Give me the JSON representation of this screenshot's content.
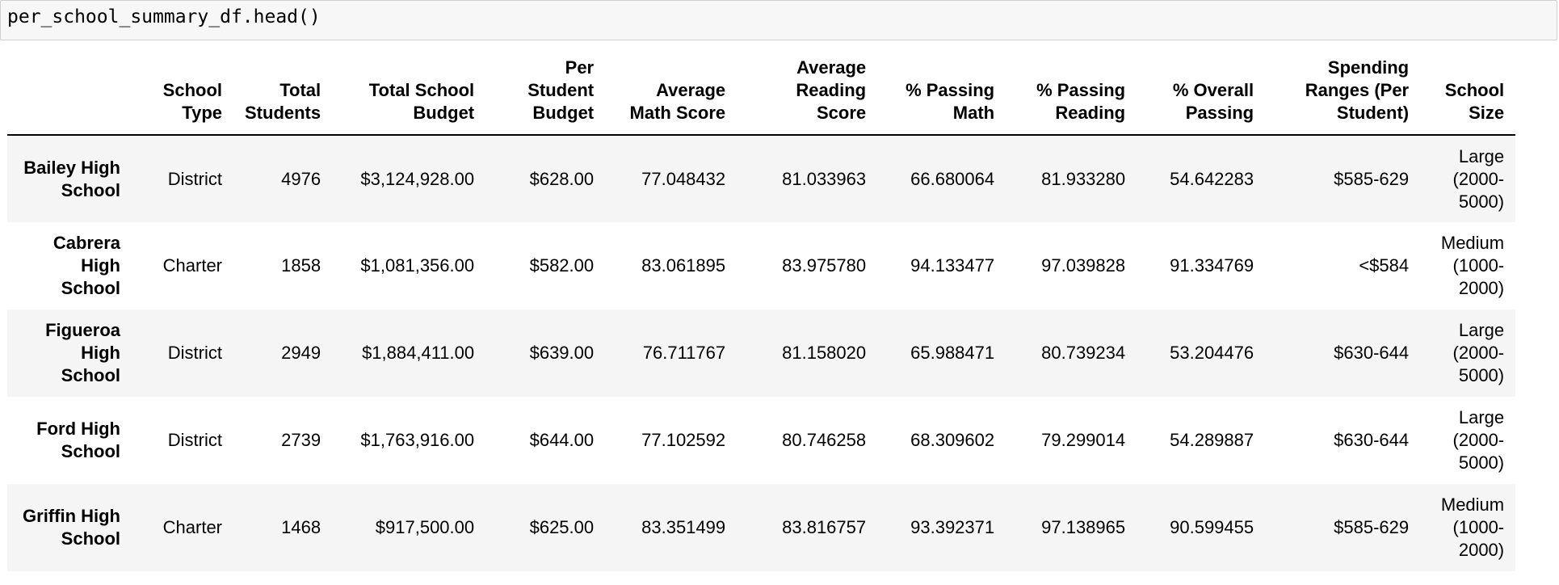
{
  "input": {
    "code": "per_school_summary_df.head()"
  },
  "table": {
    "columns": [
      "",
      "School Type",
      "Total Students",
      "Total School Budget",
      "Per Student Budget",
      "Average Math Score",
      "Average Reading Score",
      "% Passing Math",
      "% Passing Reading",
      "% Overall Passing",
      "Spending Ranges (Per Student)",
      "School Size"
    ],
    "rows": [
      {
        "index": "Bailey High School",
        "cells": [
          "District",
          "4976",
          "$3,124,928.00",
          "$628.00",
          "77.048432",
          "81.033963",
          "66.680064",
          "81.933280",
          "54.642283",
          "$585-629",
          "Large (2000-5000)"
        ]
      },
      {
        "index": "Cabrera High School",
        "cells": [
          "Charter",
          "1858",
          "$1,081,356.00",
          "$582.00",
          "83.061895",
          "83.975780",
          "94.133477",
          "97.039828",
          "91.334769",
          "<$584",
          "Medium (1000-2000)"
        ]
      },
      {
        "index": "Figueroa High School",
        "cells": [
          "District",
          "2949",
          "$1,884,411.00",
          "$639.00",
          "76.711767",
          "81.158020",
          "65.988471",
          "80.739234",
          "53.204476",
          "$630-644",
          "Large (2000-5000)"
        ]
      },
      {
        "index": "Ford High School",
        "cells": [
          "District",
          "2739",
          "$1,763,916.00",
          "$644.00",
          "77.102592",
          "80.746258",
          "68.309602",
          "79.299014",
          "54.289887",
          "$630-644",
          "Large (2000-5000)"
        ]
      },
      {
        "index": "Griffin High School",
        "cells": [
          "Charter",
          "1468",
          "$917,500.00",
          "$625.00",
          "83.351499",
          "83.816757",
          "93.392371",
          "97.138965",
          "90.599455",
          "$585-629",
          "Medium (1000-2000)"
        ]
      }
    ]
  }
}
